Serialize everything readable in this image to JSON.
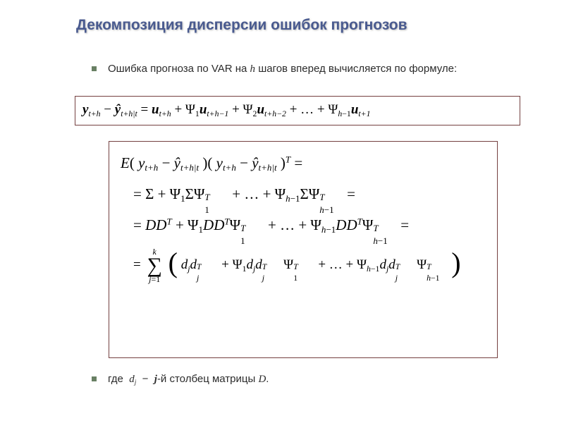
{
  "title": "Декомпозиция дисперсии ошибок прогнозов",
  "bullets": {
    "intro": "Ошибка прогноза по VAR на <i>h</i> шагов вперед вычисляется по формуле:",
    "where": "где  <i>d<sub>j</sub></i>  −  <i><b>j</b></i>-й столбец матрицы <i>D</i>."
  },
  "formula1": "<i><b>y</b><sub>t+h</sub></i> − <i><b>ŷ</b><sub>t+h|t</sub></i> = <i><b>u</b><sub>t+h</sub></i> + Ψ<sub>1</sub><i><b>u</b><sub>t+h−1</sub></i> + Ψ<sub>2</sub><i><b>u</b><sub>t+h−2</sub></i> + &#x2026; + Ψ<sub><i>h</i>−1</sub><i><b>u</b><sub>t+1</sub></i>",
  "formula2": {
    "l1": "<i>E</i>( <i>y<sub>t+h</sub></i> − <i>ŷ<sub>t+h|t</sub></i> )( <i>y<sub>t+h</sub></i> − <i>ŷ<sub>t+h|t</sub></i> )<sup><i>T</i></sup> =",
    "l2": "= Σ + Ψ<sub>1</sub>ΣΨ<span class=\"subsup\"><sup><i>T</i></sup><sub>1</sub></span><span class=\"sspad\"></span> + &#x2026; + Ψ<sub><i>h</i>−1</sub>ΣΨ<span class=\"subsup\"><sup><i>T</i></sup><sub><i>h</i>−1</sub></span><span class=\"sspad\"></span> =",
    "l3": "= <i>DD</i><sup><i>T</i></sup> + Ψ<sub>1</sub><i>DD</i><sup><i>T</i></sup>Ψ<span class=\"subsup\"><sup><i>T</i></sup><sub>1</sub></span><span class=\"sspad\"></span> + &#x2026; + Ψ<sub><i>h</i>−1</sub><i>DD</i><sup><i>T</i></sup>Ψ<span class=\"subsup\"><sup><i>T</i></sup><sub><i>h</i>−1</sub></span><span class=\"sspad\"></span> =",
    "sum_upper": "<i>k</i>",
    "sum_lower": "<i>j</i>=1",
    "l4_inner": "<i>d<sub>j</sub>d</i><span class=\"subsup\"><sup><i>T</i></sup><sub><i>j</i></sub></span><span class=\"sspad\"></span> + Ψ<sub>1</sub><i>d<sub>j</sub>d</i><span class=\"subsup\"><sup><i>T</i></sup><sub><i>j</i></sub></span><span class=\"sspad\"></span>Ψ<span class=\"subsup\"><sup><i>T</i></sup><sub>1</sub></span><span class=\"sspad\"></span> + &#x2026; + Ψ<sub><i>h</i>−1</sub><i>d<sub>j</sub>d</i><span class=\"subsup\"><sup><i>T</i></sup><sub><i>j</i></sub></span><span class=\"sspad\"></span>Ψ<span class=\"subsup\"><sup><i>T</i></sup><sub><i>h</i>−1</sub></span><span class=\"sspad\"></span>"
  },
  "style": {
    "title_color": "#495a8f",
    "box_border": "#744040",
    "bullet_color": "#698064",
    "background": "#ffffff",
    "title_fontsize": 21,
    "body_fontsize": 15,
    "formula_fontsize": 21
  }
}
